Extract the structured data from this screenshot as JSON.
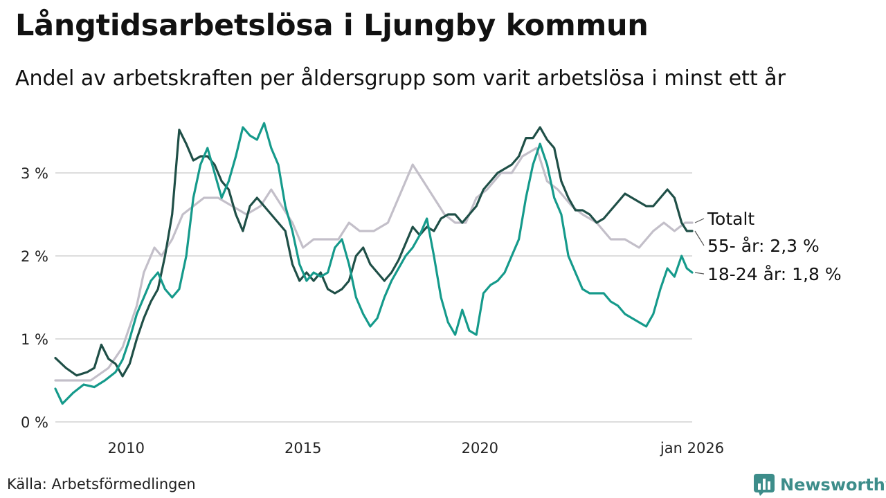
{
  "title": "Långtidsarbetslösa i Ljungby kommun",
  "subtitle": "Andel av arbetskraften per åldersgrupp som varit arbetslösa i minst ett år",
  "source": "Källa: Arbetsförmedlingen",
  "brand": "Newsworthy",
  "colors": {
    "totalt": "#c3bfc9",
    "age55": "#1f4f47",
    "age18": "#159a8b",
    "grid": "#dddddd",
    "brand": "#3d8d8a"
  },
  "chart_data": {
    "type": "line",
    "title": "Långtidsarbetslösa i Ljungby kommun",
    "xlabel": "",
    "ylabel": "",
    "xlim": [
      2008.0,
      2026.0
    ],
    "ylim": [
      0,
      3.75
    ],
    "y_ticks": [
      {
        "value": 0,
        "label": "0 %"
      },
      {
        "value": 1,
        "label": "1 %"
      },
      {
        "value": 2,
        "label": "2 %"
      },
      {
        "value": 3,
        "label": "3 %"
      }
    ],
    "x_ticks": [
      {
        "value": 2010,
        "label": "2010"
      },
      {
        "value": 2015,
        "label": "2015"
      },
      {
        "value": 2020,
        "label": "2020"
      },
      {
        "value": 2026,
        "label": "jan 2026"
      }
    ],
    "grid": true,
    "series": [
      {
        "name": "Totalt",
        "label": "Totalt",
        "color_key": "totalt",
        "points": [
          [
            2008.0,
            0.5
          ],
          [
            2009.0,
            0.5
          ],
          [
            2009.5,
            0.65
          ],
          [
            2009.9,
            0.9
          ],
          [
            2010.3,
            1.4
          ],
          [
            2010.5,
            1.8
          ],
          [
            2010.8,
            2.1
          ],
          [
            2011.0,
            2.0
          ],
          [
            2011.3,
            2.2
          ],
          [
            2011.6,
            2.5
          ],
          [
            2011.9,
            2.6
          ],
          [
            2012.2,
            2.7
          ],
          [
            2012.6,
            2.7
          ],
          [
            2013.0,
            2.6
          ],
          [
            2013.4,
            2.5
          ],
          [
            2013.8,
            2.6
          ],
          [
            2014.1,
            2.8
          ],
          [
            2014.4,
            2.6
          ],
          [
            2014.7,
            2.4
          ],
          [
            2015.0,
            2.1
          ],
          [
            2015.3,
            2.2
          ],
          [
            2015.7,
            2.2
          ],
          [
            2016.0,
            2.2
          ],
          [
            2016.3,
            2.4
          ],
          [
            2016.6,
            2.3
          ],
          [
            2017.0,
            2.3
          ],
          [
            2017.4,
            2.4
          ],
          [
            2017.8,
            2.8
          ],
          [
            2018.1,
            3.1
          ],
          [
            2018.4,
            2.9
          ],
          [
            2018.7,
            2.7
          ],
          [
            2019.0,
            2.5
          ],
          [
            2019.3,
            2.4
          ],
          [
            2019.6,
            2.4
          ],
          [
            2019.9,
            2.7
          ],
          [
            2020.2,
            2.8
          ],
          [
            2020.6,
            3.0
          ],
          [
            2020.9,
            3.0
          ],
          [
            2021.2,
            3.2
          ],
          [
            2021.6,
            3.3
          ],
          [
            2021.9,
            2.9
          ],
          [
            2022.2,
            2.8
          ],
          [
            2022.6,
            2.6
          ],
          [
            2022.9,
            2.5
          ],
          [
            2023.3,
            2.4
          ],
          [
            2023.7,
            2.2
          ],
          [
            2024.1,
            2.2
          ],
          [
            2024.5,
            2.1
          ],
          [
            2024.9,
            2.3
          ],
          [
            2025.2,
            2.4
          ],
          [
            2025.5,
            2.3
          ],
          [
            2025.8,
            2.4
          ],
          [
            2026.0,
            2.4
          ]
        ]
      },
      {
        "name": "55- år",
        "label": "55- år: 2,3 %",
        "color_key": "age55",
        "points": [
          [
            2008.0,
            0.77
          ],
          [
            2008.3,
            0.65
          ],
          [
            2008.6,
            0.56
          ],
          [
            2008.9,
            0.6
          ],
          [
            2009.1,
            0.65
          ],
          [
            2009.3,
            0.93
          ],
          [
            2009.5,
            0.76
          ],
          [
            2009.7,
            0.7
          ],
          [
            2009.9,
            0.55
          ],
          [
            2010.1,
            0.7
          ],
          [
            2010.3,
            1.0
          ],
          [
            2010.5,
            1.25
          ],
          [
            2010.7,
            1.45
          ],
          [
            2010.9,
            1.6
          ],
          [
            2011.1,
            2.0
          ],
          [
            2011.3,
            2.5
          ],
          [
            2011.5,
            3.52
          ],
          [
            2011.7,
            3.35
          ],
          [
            2011.9,
            3.15
          ],
          [
            2012.1,
            3.2
          ],
          [
            2012.3,
            3.2
          ],
          [
            2012.5,
            3.1
          ],
          [
            2012.7,
            2.9
          ],
          [
            2012.9,
            2.8
          ],
          [
            2013.1,
            2.5
          ],
          [
            2013.3,
            2.3
          ],
          [
            2013.5,
            2.6
          ],
          [
            2013.7,
            2.7
          ],
          [
            2013.9,
            2.6
          ],
          [
            2014.1,
            2.5
          ],
          [
            2014.3,
            2.4
          ],
          [
            2014.5,
            2.3
          ],
          [
            2014.7,
            1.9
          ],
          [
            2014.9,
            1.7
          ],
          [
            2015.1,
            1.8
          ],
          [
            2015.3,
            1.7
          ],
          [
            2015.5,
            1.8
          ],
          [
            2015.7,
            1.6
          ],
          [
            2015.9,
            1.55
          ],
          [
            2016.1,
            1.6
          ],
          [
            2016.3,
            1.7
          ],
          [
            2016.5,
            2.0
          ],
          [
            2016.7,
            2.1
          ],
          [
            2016.9,
            1.9
          ],
          [
            2017.1,
            1.8
          ],
          [
            2017.3,
            1.7
          ],
          [
            2017.5,
            1.8
          ],
          [
            2017.7,
            1.95
          ],
          [
            2017.9,
            2.15
          ],
          [
            2018.1,
            2.35
          ],
          [
            2018.3,
            2.25
          ],
          [
            2018.5,
            2.35
          ],
          [
            2018.7,
            2.3
          ],
          [
            2018.9,
            2.45
          ],
          [
            2019.1,
            2.5
          ],
          [
            2019.3,
            2.5
          ],
          [
            2019.5,
            2.4
          ],
          [
            2019.7,
            2.5
          ],
          [
            2019.9,
            2.6
          ],
          [
            2020.1,
            2.8
          ],
          [
            2020.3,
            2.9
          ],
          [
            2020.5,
            3.0
          ],
          [
            2020.7,
            3.05
          ],
          [
            2020.9,
            3.1
          ],
          [
            2021.1,
            3.2
          ],
          [
            2021.3,
            3.42
          ],
          [
            2021.5,
            3.42
          ],
          [
            2021.7,
            3.55
          ],
          [
            2021.9,
            3.4
          ],
          [
            2022.1,
            3.3
          ],
          [
            2022.3,
            2.9
          ],
          [
            2022.5,
            2.7
          ],
          [
            2022.7,
            2.55
          ],
          [
            2022.9,
            2.55
          ],
          [
            2023.1,
            2.5
          ],
          [
            2023.3,
            2.4
          ],
          [
            2023.5,
            2.45
          ],
          [
            2023.7,
            2.55
          ],
          [
            2023.9,
            2.65
          ],
          [
            2024.1,
            2.75
          ],
          [
            2024.3,
            2.7
          ],
          [
            2024.5,
            2.65
          ],
          [
            2024.7,
            2.6
          ],
          [
            2024.9,
            2.6
          ],
          [
            2025.1,
            2.7
          ],
          [
            2025.3,
            2.8
          ],
          [
            2025.5,
            2.7
          ],
          [
            2025.7,
            2.4
          ],
          [
            2025.85,
            2.3
          ],
          [
            2026.0,
            2.3
          ]
        ]
      },
      {
        "name": "18-24 år",
        "label": "18-24 år: 1,8 %",
        "color_key": "age18",
        "points": [
          [
            2008.0,
            0.4
          ],
          [
            2008.2,
            0.22
          ],
          [
            2008.5,
            0.35
          ],
          [
            2008.8,
            0.45
          ],
          [
            2009.1,
            0.42
          ],
          [
            2009.4,
            0.5
          ],
          [
            2009.7,
            0.6
          ],
          [
            2009.9,
            0.75
          ],
          [
            2010.1,
            1.0
          ],
          [
            2010.3,
            1.3
          ],
          [
            2010.5,
            1.5
          ],
          [
            2010.7,
            1.7
          ],
          [
            2010.9,
            1.8
          ],
          [
            2011.1,
            1.6
          ],
          [
            2011.3,
            1.5
          ],
          [
            2011.5,
            1.6
          ],
          [
            2011.7,
            2.0
          ],
          [
            2011.9,
            2.7
          ],
          [
            2012.1,
            3.1
          ],
          [
            2012.3,
            3.3
          ],
          [
            2012.5,
            3.0
          ],
          [
            2012.7,
            2.7
          ],
          [
            2012.9,
            2.9
          ],
          [
            2013.1,
            3.2
          ],
          [
            2013.3,
            3.55
          ],
          [
            2013.5,
            3.45
          ],
          [
            2013.7,
            3.4
          ],
          [
            2013.9,
            3.6
          ],
          [
            2014.1,
            3.3
          ],
          [
            2014.3,
            3.1
          ],
          [
            2014.5,
            2.6
          ],
          [
            2014.7,
            2.3
          ],
          [
            2014.9,
            1.9
          ],
          [
            2015.1,
            1.7
          ],
          [
            2015.3,
            1.8
          ],
          [
            2015.5,
            1.75
          ],
          [
            2015.7,
            1.8
          ],
          [
            2015.9,
            2.1
          ],
          [
            2016.1,
            2.2
          ],
          [
            2016.3,
            1.9
          ],
          [
            2016.5,
            1.5
          ],
          [
            2016.7,
            1.3
          ],
          [
            2016.9,
            1.15
          ],
          [
            2017.1,
            1.25
          ],
          [
            2017.3,
            1.5
          ],
          [
            2017.5,
            1.7
          ],
          [
            2017.7,
            1.85
          ],
          [
            2017.9,
            2.0
          ],
          [
            2018.1,
            2.1
          ],
          [
            2018.3,
            2.25
          ],
          [
            2018.5,
            2.45
          ],
          [
            2018.7,
            2.0
          ],
          [
            2018.9,
            1.5
          ],
          [
            2019.1,
            1.2
          ],
          [
            2019.3,
            1.05
          ],
          [
            2019.5,
            1.35
          ],
          [
            2019.7,
            1.1
          ],
          [
            2019.9,
            1.05
          ],
          [
            2020.1,
            1.55
          ],
          [
            2020.3,
            1.65
          ],
          [
            2020.5,
            1.7
          ],
          [
            2020.7,
            1.8
          ],
          [
            2020.9,
            2.0
          ],
          [
            2021.1,
            2.2
          ],
          [
            2021.3,
            2.7
          ],
          [
            2021.5,
            3.1
          ],
          [
            2021.7,
            3.35
          ],
          [
            2021.9,
            3.1
          ],
          [
            2022.1,
            2.7
          ],
          [
            2022.3,
            2.5
          ],
          [
            2022.5,
            2.0
          ],
          [
            2022.7,
            1.8
          ],
          [
            2022.9,
            1.6
          ],
          [
            2023.1,
            1.55
          ],
          [
            2023.3,
            1.55
          ],
          [
            2023.5,
            1.55
          ],
          [
            2023.7,
            1.45
          ],
          [
            2023.9,
            1.4
          ],
          [
            2024.1,
            1.3
          ],
          [
            2024.3,
            1.25
          ],
          [
            2024.5,
            1.2
          ],
          [
            2024.7,
            1.15
          ],
          [
            2024.9,
            1.3
          ],
          [
            2025.1,
            1.6
          ],
          [
            2025.3,
            1.85
          ],
          [
            2025.5,
            1.75
          ],
          [
            2025.7,
            2.0
          ],
          [
            2025.85,
            1.85
          ],
          [
            2026.0,
            1.8
          ]
        ]
      }
    ]
  }
}
